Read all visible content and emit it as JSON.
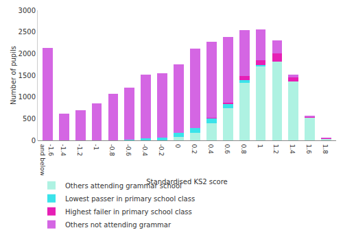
{
  "chart_data": {
    "type": "bar",
    "stacked": true,
    "x_label": "Standardised KS2 score",
    "y_label": "Number of pupils",
    "categories": [
      "-1.6 and below",
      "-1.4",
      "-1.2",
      "-1",
      "-0.8",
      "-0.6",
      "-0.4",
      "-0.2",
      "0",
      "0.2",
      "0.4",
      "0.6",
      "0.8",
      "1",
      "1.2",
      "1.4",
      "1.6",
      "1.8"
    ],
    "series": [
      {
        "name": "Others attending grammar school",
        "color": "#aef2e2",
        "values": [
          0,
          0,
          0,
          0,
          0,
          0,
          0,
          0,
          80,
          180,
          400,
          740,
          1320,
          1700,
          1810,
          1360,
          520,
          30
        ]
      },
      {
        "name": "Lowest passer in primary school class",
        "color": "#3ae3ea",
        "values": [
          0,
          0,
          0,
          0,
          0,
          20,
          50,
          70,
          90,
          100,
          100,
          90,
          70,
          40,
          10,
          0,
          0,
          0
        ]
      },
      {
        "name": "Highest failer in primary school class",
        "color": "#e61fb5",
        "values": [
          0,
          0,
          0,
          0,
          0,
          0,
          0,
          0,
          0,
          10,
          20,
          40,
          100,
          110,
          180,
          100,
          20,
          10
        ]
      },
      {
        "name": "Others not attending grammar",
        "color": "#d466e3",
        "values": [
          2130,
          610,
          690,
          850,
          1080,
          1200,
          1470,
          1470,
          1580,
          1820,
          1750,
          1510,
          1060,
          710,
          300,
          50,
          30,
          20
        ]
      }
    ],
    "ylim": [
      0,
      3000
    ],
    "yticks": [
      0,
      500,
      1000,
      1500,
      2000,
      2500,
      3000
    ],
    "grid": false,
    "legend": "bottom"
  }
}
